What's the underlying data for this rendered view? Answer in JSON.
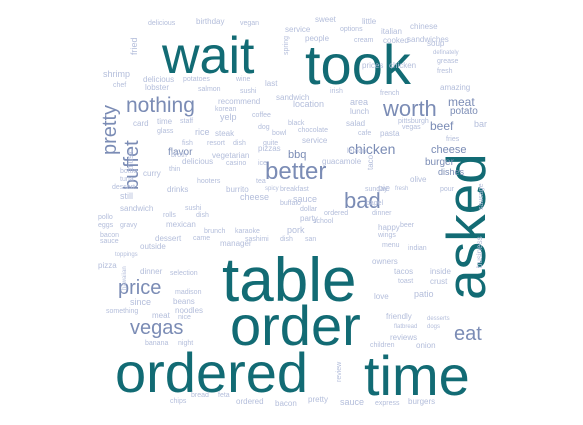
{
  "colors": {
    "big": "#126b74",
    "mid": "#7b8cb5",
    "small": "#b4bedb"
  },
  "big_words": [
    "wait",
    "took",
    "asked",
    "table",
    "order",
    "ordered",
    "time"
  ],
  "mid_words": [
    "worth",
    "nothing",
    "pretty",
    "buffet",
    "better",
    "bad",
    "price",
    "vegas",
    "eat",
    "chicken",
    "beef",
    "meat",
    "potato",
    "bbq",
    "cheese",
    "flavor",
    "burger",
    "dishes"
  ],
  "small_words": [
    "delicious",
    "birthday",
    "vegan",
    "sweet",
    "chinese",
    "service",
    "options",
    "italian",
    "little",
    "soup",
    "fried",
    "spring",
    "people",
    "cream",
    "cooked",
    "sandwiches",
    "prices",
    "picked",
    "chicken",
    "definately",
    "shrimp",
    "delicious",
    "potatoes",
    "wine",
    "fresh",
    "grease",
    "chef",
    "lobster",
    "salmon",
    "sushi",
    "last",
    "irish",
    "french",
    "amazing",
    "recommend",
    "korean",
    "sandwich",
    "area",
    "lunch",
    "bar",
    "card",
    "staff",
    "coffee",
    "yelp",
    "location",
    "salad",
    "pittsburgh",
    "time",
    "steak",
    "dog",
    "black",
    "pasta",
    "vegas",
    "glass",
    "rice",
    "bowl",
    "chocolate",
    "cafe",
    "fish",
    "resort",
    "dish",
    "quite",
    "service",
    "guacamole",
    "taco",
    "olive",
    "music",
    "curry",
    "thin",
    "pizzas",
    "chicken",
    "fries",
    "bottle",
    "tuna",
    "vegetarian",
    "broth",
    "sauce",
    "pie",
    "dessert",
    "delicious",
    "casino",
    "ice",
    "breakfast",
    "spicy",
    "sunday",
    "fresh",
    "pour",
    "still",
    "drinks",
    "hooters",
    "burrito",
    "tea",
    "dinner",
    "beer",
    "tacos",
    "sandwich",
    "rolls",
    "sushi",
    "party",
    "ordered",
    "mexican",
    "flatbread",
    "dogs",
    "outside",
    "dessert",
    "came",
    "manager",
    "buffalo",
    "dish",
    "pork",
    "happy",
    "wings",
    "menu",
    "indian",
    "business",
    "sauce",
    "dinner",
    "selection",
    "pizza",
    "toast",
    "crust",
    "since",
    "beans",
    "noodles",
    "owners",
    "inside",
    "patio",
    "love",
    "meat",
    "nice",
    "reviews",
    "something",
    "review",
    "onion",
    "banana",
    "night",
    "chips",
    "bread",
    "feta",
    "ordered",
    "bacon",
    "pretty",
    "sauce",
    "express",
    "burgers",
    "children",
    "friendly",
    "desserts",
    "bagel",
    "pollo",
    "eggs",
    "gravy",
    "toppings",
    "bacon",
    "hawaiian",
    "madison",
    "sausage",
    "dollar",
    "school",
    "san",
    "brunch",
    "karaoke",
    "sashimi",
    "lemon",
    "cheese",
    "dish"
  ]
}
